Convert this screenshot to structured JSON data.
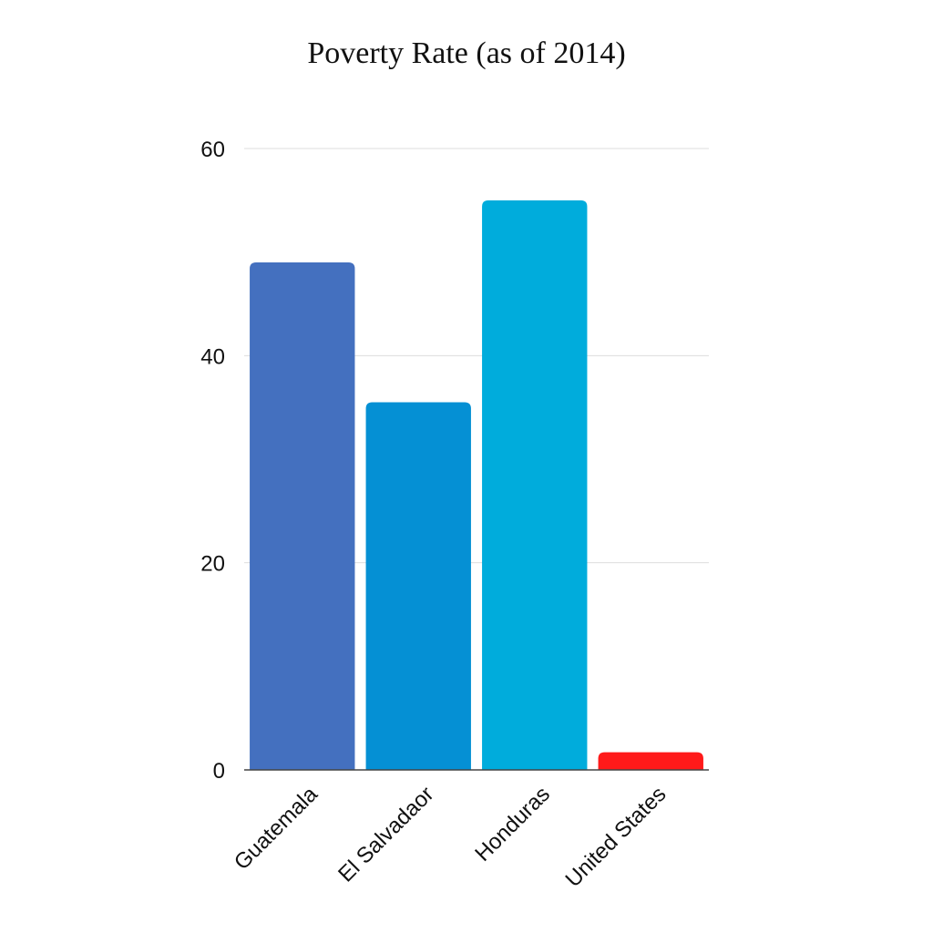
{
  "chart_data": {
    "type": "bar",
    "title": "Poverty Rate (as of 2014)",
    "xlabel": "",
    "ylabel": "",
    "categories": [
      "Guatemala",
      "El Salvadaor",
      "Honduras",
      "United States"
    ],
    "values": [
      49,
      35.5,
      55,
      1.7
    ],
    "colors": [
      "#4470bf",
      "#0590d4",
      "#00acdc",
      "#ff1a1a"
    ],
    "ylim": [
      0,
      60
    ],
    "yticks": [
      0,
      20,
      40,
      60
    ],
    "grid": true,
    "legend": "none"
  }
}
